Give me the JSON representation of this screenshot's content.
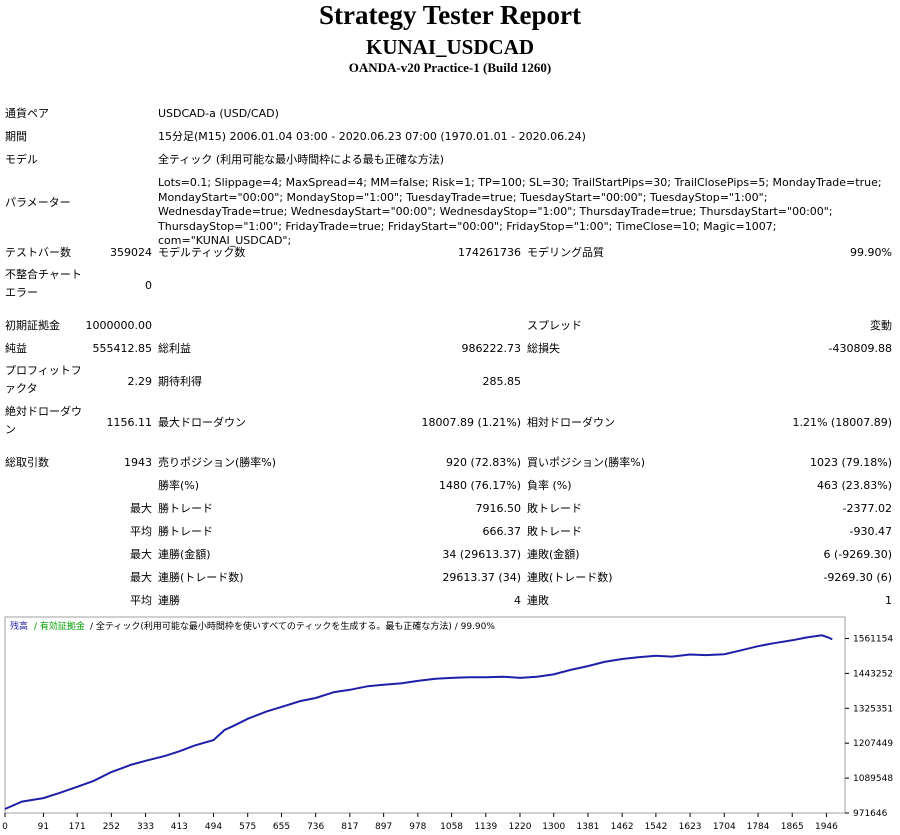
{
  "header": {
    "title": "Strategy Tester Report",
    "ea_name": "KUNAI_USDCAD",
    "server": "OANDA-v20 Practice-1 (Build 1260)"
  },
  "info": {
    "symbol_label": "通貨ペア",
    "symbol": "USDCAD-a (USD/CAD)",
    "period_label": "期間",
    "period": "15分足(M15) 2006.01.04 03:00 - 2020.06.23 07:00 (1970.01.01 - 2020.06.24)",
    "model_label": "モデル",
    "model": "全ティック (利用可能な最小時間枠による最も正確な方法)",
    "params_label": "パラメーター",
    "params": "Lots=0.1; Slippage=4; MaxSpread=4; MM=false; Risk=1; TP=100; SL=30; TrailStartPips=30; TrailClosePips=5; MondayTrade=true; MondayStart=\"00:00\"; MondayStop=\"1:00\"; TuesdayTrade=true; TuesdayStart=\"00:00\"; TuesdayStop=\"1:00\"; WednesdayTrade=true; WednesdayStart=\"00:00\"; WednesdayStop=\"1:00\"; ThursdayTrade=true; ThursdayStart=\"00:00\"; ThursdayStop=\"1:00\"; FridayTrade=true; FridayStart=\"00:00\"; FridayStop=\"1:00\"; TimeClose=10; Magic=1007; com=\"KUNAI_USDCAD\";"
  },
  "stats": {
    "bars_label": "テストバー数",
    "bars": "359024",
    "ticks_label": "モデルティック数",
    "ticks": "174261736",
    "quality_label": "モデリング品質",
    "quality": "99.90%",
    "mismatch_label": "不整合チャートエラー",
    "mismatch": "0",
    "deposit_label": "初期証拠金",
    "deposit": "1000000.00",
    "spread_label": "スプレッド",
    "spread": "変動",
    "net_label": "純益",
    "net": "555412.85",
    "gross_profit_label": "総利益",
    "gross_profit": "986222.73",
    "gross_loss_label": "総損失",
    "gross_loss": "-430809.88",
    "pf_label": "プロフィットファクタ",
    "pf": "2.29",
    "expected_label": "期待利得",
    "expected": "285.85",
    "abs_dd_label": "絶対ドローダウン",
    "abs_dd": "1156.11",
    "max_dd_label": "最大ドローダウン",
    "max_dd": "18007.89 (1.21%)",
    "rel_dd_label": "相対ドローダウン",
    "rel_dd": "1.21% (18007.89)",
    "trades_label": "総取引数",
    "trades": "1943",
    "short_label": "売りポジション(勝率%)",
    "short": "920 (72.83%)",
    "long_label": "買いポジション(勝率%)",
    "long": "1023 (79.18%)",
    "win_label": "勝率(%)",
    "win": "1480 (76.17%)",
    "loss_label": "負率 (%)",
    "loss": "463 (23.83%)",
    "max_word": "最大",
    "avg_word": "平均",
    "largest_win_label": "勝トレード",
    "largest_win": "7916.50",
    "largest_loss_label": "敗トレード",
    "largest_loss": "-2377.02",
    "avg_win_label": "勝トレード",
    "avg_win": "666.37",
    "avg_loss_label": "敗トレード",
    "avg_loss": "-930.47",
    "cons_wins_money_label": "連勝(金額)",
    "cons_wins_money": "34 (29613.37)",
    "cons_loss_money_label": "連敗(金額)",
    "cons_loss_money": "6 (-9269.30)",
    "cons_wins_trades_label": "連勝(トレード数)",
    "cons_wins_trades": "29613.37 (34)",
    "cons_loss_trades_label": "連敗(トレード数)",
    "cons_loss_trades": "-9269.30 (6)",
    "avg_cons_wins_label": "連勝",
    "avg_cons_wins": "4",
    "avg_cons_loss_label": "連敗",
    "avg_cons_loss": "1"
  },
  "chart_data": {
    "type": "line",
    "legend": [
      "残高",
      "有効証拠金"
    ],
    "legend_rest": "/ 全ティック(利用可能な最小時間枠を使いすべてのティックを生成する。最も正確な方法) / 99.90%",
    "colors": {
      "balance": "#1f1fa8",
      "equity": "#00a000",
      "legend_text": "#000000"
    },
    "x_ticks": [
      0,
      91,
      171,
      252,
      333,
      413,
      494,
      575,
      655,
      736,
      817,
      897,
      978,
      1058,
      1139,
      1220,
      1300,
      1381,
      1462,
      1542,
      1623,
      1704,
      1784,
      1865,
      1946
    ],
    "y_ticks": [
      971646,
      1089548,
      1207449,
      1325351,
      1443252,
      1561154
    ],
    "xlim": [
      0,
      1990
    ],
    "ylim": [
      971646,
      1600000
    ],
    "series": [
      {
        "name": "残高",
        "x": [
          0,
          40,
          91,
          130,
          171,
          210,
          252,
          300,
          333,
          380,
          413,
          450,
          494,
          520,
          540,
          575,
          620,
          655,
          700,
          736,
          780,
          817,
          860,
          897,
          940,
          978,
          1020,
          1058,
          1100,
          1139,
          1180,
          1220,
          1260,
          1300,
          1340,
          1381,
          1420,
          1462,
          1500,
          1542,
          1580,
          1623,
          1660,
          1704,
          1740,
          1784,
          1820,
          1865,
          1900,
          1935,
          1950,
          1960
        ],
        "y": [
          985000,
          1010000,
          1022000,
          1040000,
          1060000,
          1080000,
          1110000,
          1135000,
          1148000,
          1165000,
          1180000,
          1200000,
          1218000,
          1252000,
          1265000,
          1290000,
          1315000,
          1330000,
          1350000,
          1360000,
          1380000,
          1388000,
          1400000,
          1405000,
          1410000,
          1418000,
          1425000,
          1428000,
          1430000,
          1430000,
          1432000,
          1428000,
          1432000,
          1440000,
          1455000,
          1468000,
          1482000,
          1492000,
          1498000,
          1503000,
          1500000,
          1507000,
          1505000,
          1508000,
          1520000,
          1535000,
          1545000,
          1555000,
          1565000,
          1572000,
          1565000,
          1558000
        ]
      }
    ]
  }
}
